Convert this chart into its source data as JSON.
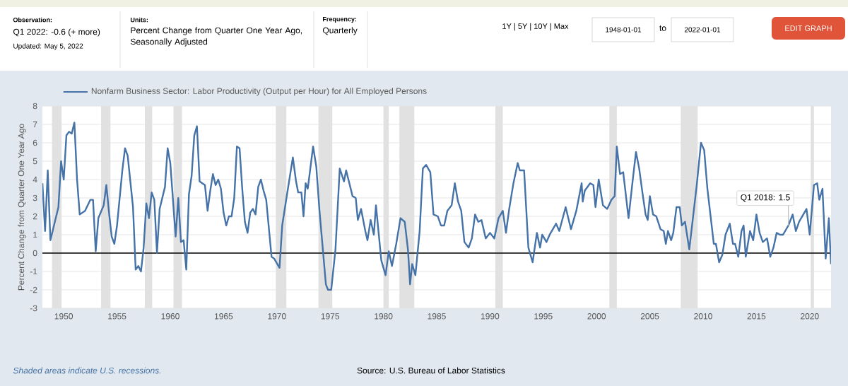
{
  "chart_data": {
    "type": "line",
    "ylabel": "Percent Change from Quarter One Year Ago",
    "xlim": [
      1948,
      2022
    ],
    "ylim": [
      -3,
      8
    ],
    "xticks": [
      1950,
      1955,
      1960,
      1965,
      1970,
      1975,
      1980,
      1985,
      1990,
      1995,
      2000,
      2005,
      2010,
      2015,
      2020
    ],
    "yticks": [
      -3,
      -2,
      -1,
      0,
      1,
      2,
      3,
      4,
      5,
      6,
      7,
      8
    ],
    "grid": "y",
    "legend": "top",
    "x": [
      1948.0,
      1948.25,
      1948.5,
      1948.75,
      1949.0,
      1949.5,
      1949.75,
      1950.0,
      1950.25,
      1950.5,
      1950.75,
      1951.0,
      1951.25,
      1951.5,
      1952.0,
      1952.5,
      1952.75,
      1953.0,
      1953.25,
      1953.75,
      1954.0,
      1954.25,
      1954.5,
      1954.75,
      1955.0,
      1955.5,
      1955.75,
      1956.0,
      1956.5,
      1956.75,
      1957.0,
      1957.25,
      1957.5,
      1957.75,
      1958.0,
      1958.25,
      1958.5,
      1958.75,
      1959.0,
      1959.5,
      1959.75,
      1960.0,
      1960.25,
      1960.5,
      1960.75,
      1961.0,
      1961.25,
      1961.5,
      1961.75,
      1962.0,
      1962.25,
      1962.5,
      1962.75,
      1963.0,
      1963.25,
      1963.5,
      1963.75,
      1964.0,
      1964.25,
      1964.5,
      1964.75,
      1965.0,
      1965.25,
      1965.5,
      1965.75,
      1966.0,
      1966.25,
      1966.5,
      1966.75,
      1967.0,
      1967.25,
      1967.5,
      1967.75,
      1968.0,
      1968.25,
      1968.5,
      1968.75,
      1969.0,
      1969.5,
      1969.75,
      1970.25,
      1970.5,
      1970.9,
      1971.5,
      1971.8,
      1972.0,
      1972.3,
      1972.5,
      1972.7,
      1972.9,
      1973.4,
      1973.7,
      1974.0,
      1974.6,
      1974.8,
      1975.1,
      1975.5,
      1975.9,
      1976.3,
      1976.5,
      1977.1,
      1977.4,
      1977.6,
      1977.9,
      1978.3,
      1978.5,
      1978.8,
      1979.1,
      1979.3,
      1979.6,
      1979.8,
      1980.2,
      1980.5,
      1980.8,
      1981.2,
      1981.6,
      1982.0,
      1982.3,
      1982.5,
      1982.7,
      1983.0,
      1983.4,
      1983.7,
      1984.0,
      1984.4,
      1984.7,
      1985.1,
      1985.4,
      1985.7,
      1986.0,
      1986.4,
      1986.7,
      1987.0,
      1987.3,
      1987.6,
      1988.0,
      1988.3,
      1988.6,
      1988.9,
      1989.2,
      1989.6,
      1990.0,
      1990.4,
      1990.8,
      1991.2,
      1991.5,
      1991.8,
      1992.2,
      1992.6,
      1992.8,
      1993.2,
      1993.6,
      1994.0,
      1994.4,
      1994.7,
      1994.9,
      1995.3,
      1995.6,
      1996.2,
      1996.5,
      1997.1,
      1997.6,
      1998.1,
      1998.6,
      1998.7,
      1998.9,
      1999.4,
      1999.7,
      1999.9,
      2000.2,
      2000.6,
      2001.0,
      2001.4,
      2001.7,
      2001.9,
      2002.2,
      2002.5,
      2002.7,
      2003.0,
      2003.4,
      2003.7,
      2004.0,
      2004.3,
      2004.6,
      2004.8,
      2005.0,
      2005.3,
      2005.6,
      2006.0,
      2006.3,
      2006.5,
      2006.7,
      2007.0,
      2007.2,
      2007.5,
      2007.8,
      2008.0,
      2008.3,
      2008.7,
      2009.0,
      2009.4,
      2009.8,
      2010.1,
      2010.4,
      2010.7,
      2011.0,
      2011.2,
      2011.5,
      2011.8,
      2012.1,
      2012.5,
      2012.8,
      2013.0,
      2013.3,
      2013.6,
      2013.8,
      2014.0,
      2014.4,
      2014.7,
      2015.0,
      2015.3,
      2015.6,
      2016.0,
      2016.3,
      2016.6,
      2016.9,
      2017.2,
      2017.5,
      2017.7,
      2018.0,
      2018.4,
      2018.7,
      2019.0,
      2019.4,
      2019.7,
      2020.0,
      2020.4,
      2020.7,
      2020.9,
      2021.2,
      2021.5,
      2021.8,
      2022.0
    ],
    "series": [
      {
        "name": "Nonfarm Business Sector: Labor Productivity (Output per Hour) for All Employed Persons",
        "color": "#4572a7",
        "values": [
          3.8,
          1.2,
          4.5,
          0.7,
          1.3,
          2.5,
          5.0,
          4.0,
          6.4,
          6.6,
          6.5,
          7.1,
          4.0,
          2.1,
          2.3,
          2.9,
          2.9,
          0.1,
          1.9,
          2.6,
          3.7,
          2.2,
          0.9,
          0.5,
          1.5,
          4.5,
          5.7,
          5.3,
          2.5,
          -0.9,
          -0.7,
          -1.0,
          0.3,
          2.7,
          1.9,
          3.3,
          2.9,
          0.0,
          2.4,
          3.6,
          5.7,
          4.9,
          2.9,
          0.9,
          3.0,
          0.6,
          0.7,
          -0.9,
          3.2,
          4.2,
          6.4,
          6.9,
          3.9,
          3.8,
          3.7,
          2.3,
          3.4,
          4.3,
          3.7,
          4.0,
          3.5,
          2.2,
          1.5,
          2.0,
          2.0,
          3.0,
          5.8,
          5.7,
          3.5,
          1.7,
          1.1,
          2.2,
          2.4,
          2.1,
          3.6,
          4.0,
          3.4,
          2.9,
          -0.2,
          -0.3,
          -0.8,
          1.5,
          3.0,
          5.2,
          3.9,
          3.3,
          3.3,
          2.0,
          3.8,
          3.5,
          5.8,
          4.7,
          2.3,
          -1.7,
          -2.0,
          -2.0,
          0.2,
          4.6,
          3.9,
          4.5,
          3.1,
          3.0,
          1.8,
          2.4,
          1.2,
          0.7,
          1.8,
          1.0,
          2.6,
          0.8,
          -0.4,
          -1.2,
          0.1,
          -0.7,
          0.5,
          1.9,
          1.7,
          0.2,
          -1.7,
          -0.6,
          -1.2,
          1.2,
          4.6,
          4.8,
          4.4,
          2.1,
          2.0,
          1.5,
          1.5,
          2.3,
          2.6,
          3.8,
          2.8,
          2.3,
          0.6,
          0.3,
          0.8,
          2.1,
          1.7,
          1.8,
          0.8,
          1.1,
          0.8,
          1.9,
          2.3,
          1.1,
          2.4,
          3.8,
          4.9,
          4.5,
          4.5,
          0.3,
          -0.5,
          1.1,
          0.3,
          1.0,
          0.6,
          1.0,
          1.6,
          1.2,
          2.5,
          1.3,
          2.3,
          3.8,
          2.8,
          3.4,
          3.8,
          3.7,
          2.5,
          4.0,
          2.6,
          2.4,
          2.9,
          3.1,
          5.8,
          4.3,
          4.4,
          3.4,
          1.9,
          4.0,
          5.5,
          4.6,
          3.3,
          2.1,
          1.8,
          3.1,
          2.1,
          2.0,
          1.3,
          1.2,
          0.5,
          1.2,
          0.7,
          1.1,
          2.5,
          2.5,
          1.5,
          1.7,
          0.2,
          1.7,
          3.7,
          6.0,
          5.6,
          3.5,
          2.0,
          0.5,
          0.5,
          -0.5,
          -0.1,
          1.0,
          1.6,
          0.5,
          0.5,
          -0.2,
          1.2,
          1.5,
          -0.2,
          1.2,
          0.7,
          2.1,
          1.1,
          0.6,
          0.8,
          -0.2,
          0.3,
          1.1,
          1.0,
          1.0,
          1.2,
          1.5,
          2.1,
          1.2,
          1.7,
          2.1,
          2.4,
          1.0,
          3.7,
          3.8,
          2.9,
          3.5,
          -0.3,
          1.9,
          -0.6
        ]
      }
    ],
    "ref_lines": [
      {
        "axis": "y",
        "value": 0,
        "color": "#000000"
      }
    ],
    "bands": [
      {
        "axis": "x",
        "from": 1948.9,
        "to": 1949.8,
        "color": "#e1e1e1"
      },
      {
        "axis": "x",
        "from": 1953.5,
        "to": 1954.4,
        "color": "#e1e1e1"
      },
      {
        "axis": "x",
        "from": 1957.6,
        "to": 1958.3,
        "color": "#e1e1e1"
      },
      {
        "axis": "x",
        "from": 1960.3,
        "to": 1961.1,
        "color": "#e1e1e1"
      },
      {
        "axis": "x",
        "from": 1969.9,
        "to": 1970.9,
        "color": "#e1e1e1"
      },
      {
        "axis": "x",
        "from": 1973.9,
        "to": 1975.2,
        "color": "#e1e1e1"
      },
      {
        "axis": "x",
        "from": 1980.0,
        "to": 1980.5,
        "color": "#e1e1e1"
      },
      {
        "axis": "x",
        "from": 1981.5,
        "to": 1982.9,
        "color": "#e1e1e1"
      },
      {
        "axis": "x",
        "from": 1990.5,
        "to": 1991.2,
        "color": "#e1e1e1"
      },
      {
        "axis": "x",
        "from": 2001.2,
        "to": 2001.9,
        "color": "#e1e1e1"
      },
      {
        "axis": "x",
        "from": 2007.9,
        "to": 2009.5,
        "color": "#e1e1e1"
      },
      {
        "axis": "x",
        "from": 2020.1,
        "to": 2020.4,
        "color": "#e1e1e1"
      }
    ],
    "annotations": [
      "Observation:",
      "Q1 2022: -0.6 (+ more)",
      "Updated: May 5, 2022",
      "Units:",
      "Percent Change from Quarter One Year Ago, Seasonally Adjusted",
      "Frequency:",
      "Quarterly",
      "1Y | 5Y | 10Y | Max",
      "1948-01-01",
      "to",
      "2022-01-01",
      "EDIT GRAPH",
      "Shaded areas indicate U.S. recessions.",
      "Source: U.S. Bureau of Labor Statistics",
      {
        "text": "Q1 2018: 1.5",
        "x": 2018.0,
        "y": 1.5
      }
    ]
  }
}
